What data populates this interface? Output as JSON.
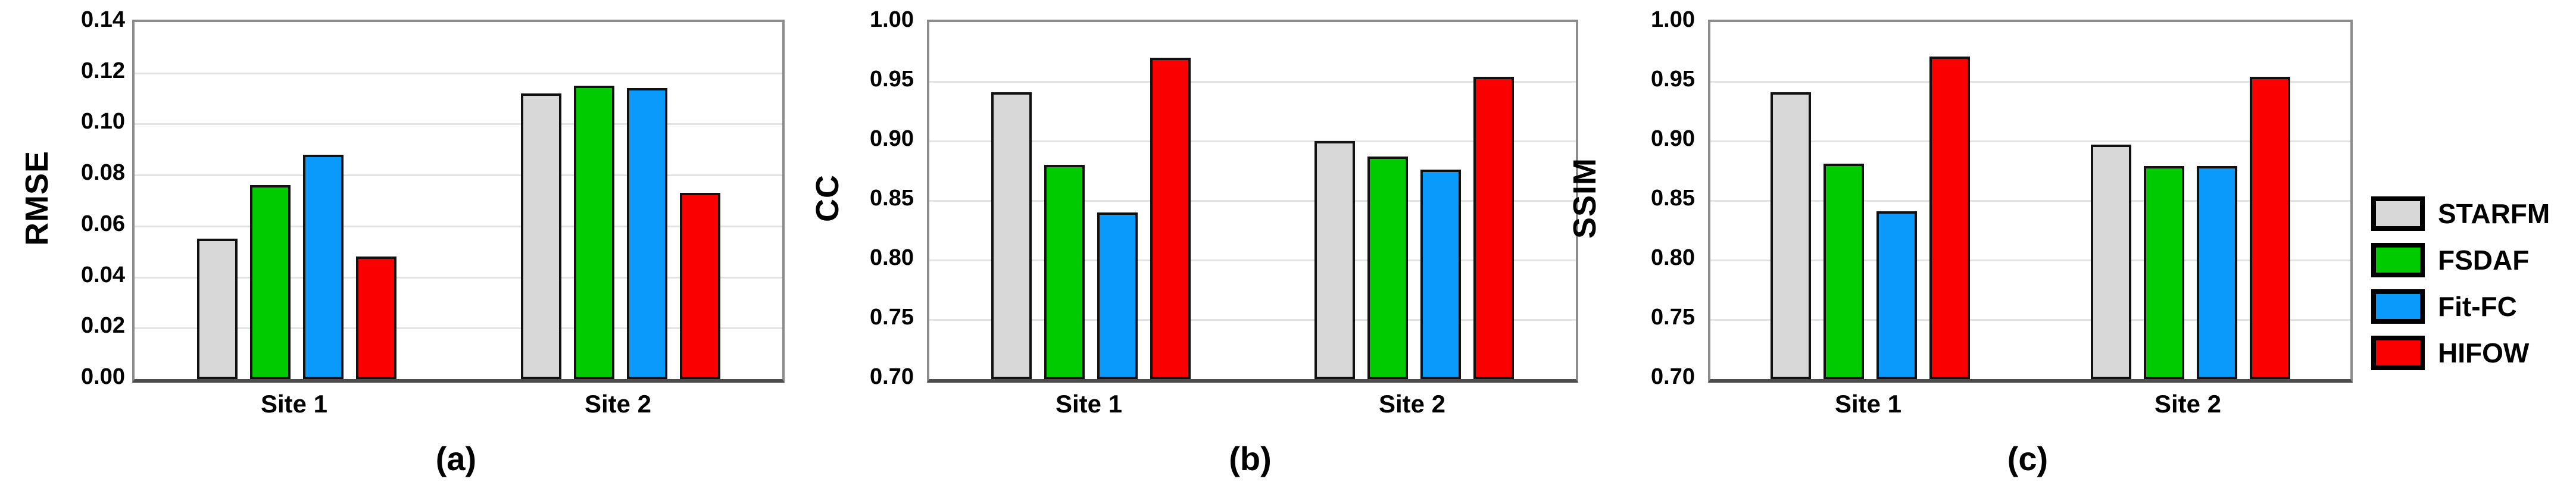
{
  "legend": {
    "items": [
      {
        "label": "STARFM",
        "color": "#D8D8D8"
      },
      {
        "label": "FSDAF",
        "color": "#00CB00"
      },
      {
        "label": "Fit-FC",
        "color": "#0A9AFC"
      },
      {
        "label": "HIFOW",
        "color": "#FA0000"
      }
    ]
  },
  "chart_data": [
    {
      "type": "bar",
      "panel_label": "(a)",
      "title": "",
      "xlabel": "",
      "ylabel": "RMSE",
      "categories": [
        "Site 1",
        "Site 2"
      ],
      "yticks": [
        "0.14",
        "0.12",
        "0.10",
        "0.08",
        "0.06",
        "0.04",
        "0.02",
        "0.00"
      ],
      "ylim": [
        0,
        0.14
      ],
      "grid": true,
      "legend_position": "right-of-figure",
      "series": [
        {
          "name": "STARFM",
          "color": "#D8D8D8",
          "values": [
            0.055,
            0.112
          ]
        },
        {
          "name": "FSDAF",
          "color": "#00CB00",
          "values": [
            0.076,
            0.115
          ]
        },
        {
          "name": "Fit-FC",
          "color": "#0A9AFC",
          "values": [
            0.088,
            0.114
          ]
        },
        {
          "name": "HIFOW",
          "color": "#FA0000",
          "values": [
            0.048,
            0.073
          ]
        }
      ]
    },
    {
      "type": "bar",
      "panel_label": "(b)",
      "title": "",
      "xlabel": "",
      "ylabel": "CC",
      "categories": [
        "Site 1",
        "Site 2"
      ],
      "yticks": [
        "1.00",
        "0.95",
        "0.90",
        "0.85",
        "0.80",
        "0.75",
        "0.70"
      ],
      "ylim": [
        0.7,
        1.0
      ],
      "grid": true,
      "legend_position": "right-of-figure",
      "series": [
        {
          "name": "STARFM",
          "color": "#D8D8D8",
          "values": [
            0.941,
            0.9
          ]
        },
        {
          "name": "FSDAF",
          "color": "#00CB00",
          "values": [
            0.88,
            0.887
          ]
        },
        {
          "name": "Fit-FC",
          "color": "#0A9AFC",
          "values": [
            0.84,
            0.876
          ]
        },
        {
          "name": "HIFOW",
          "color": "#FA0000",
          "values": [
            0.97,
            0.954
          ]
        }
      ]
    },
    {
      "type": "bar",
      "panel_label": "(c)",
      "title": "",
      "xlabel": "",
      "ylabel": "SSIM",
      "categories": [
        "Site 1",
        "Site 2"
      ],
      "yticks": [
        "1.00",
        "0.95",
        "0.90",
        "0.85",
        "0.80",
        "0.75",
        "0.70"
      ],
      "ylim": [
        0.7,
        1.0
      ],
      "grid": true,
      "legend_position": "right-of-figure",
      "series": [
        {
          "name": "STARFM",
          "color": "#D8D8D8",
          "values": [
            0.941,
            0.897
          ]
        },
        {
          "name": "FSDAF",
          "color": "#00CB00",
          "values": [
            0.881,
            0.879
          ]
        },
        {
          "name": "Fit-FC",
          "color": "#0A9AFC",
          "values": [
            0.841,
            0.879
          ]
        },
        {
          "name": "HIFOW",
          "color": "#FA0000",
          "values": [
            0.971,
            0.954
          ]
        }
      ]
    }
  ]
}
